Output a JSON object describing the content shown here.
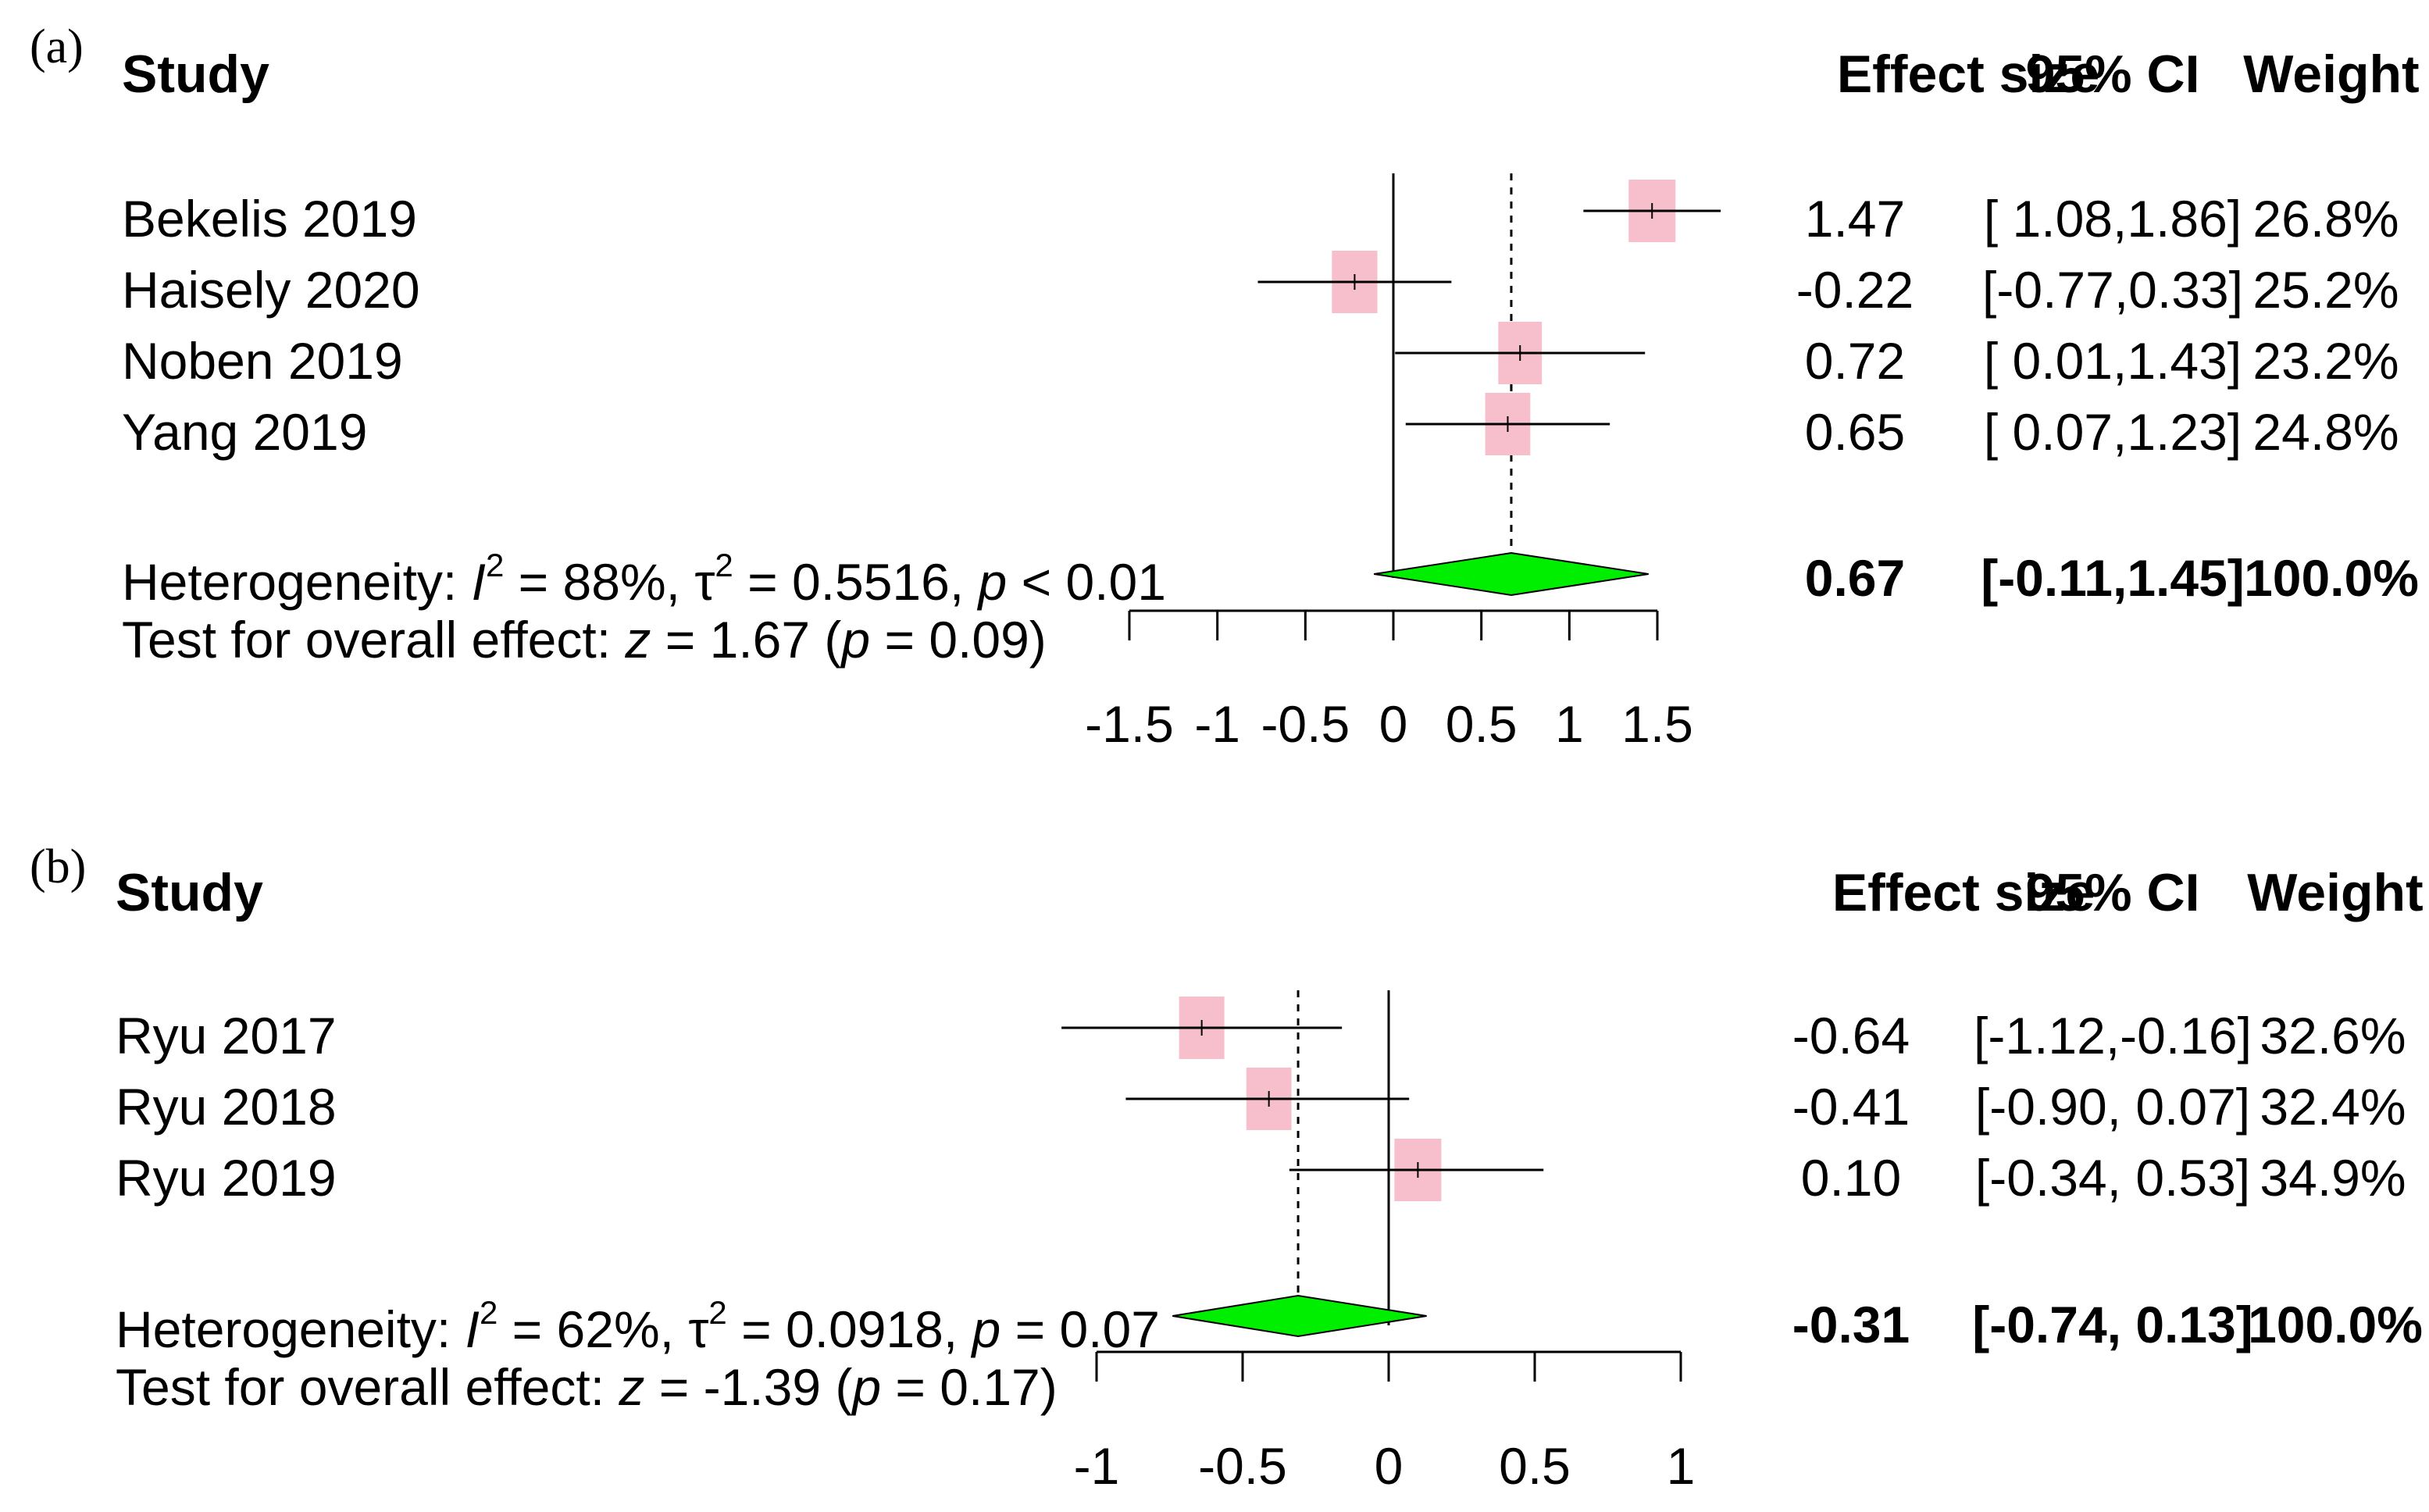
{
  "chart_data": [
    {
      "type": "forest",
      "panel": "(a)",
      "headers": {
        "study": "Study",
        "effect": "Effect size",
        "ci": "95% CI",
        "weight": "Weight"
      },
      "studies": [
        {
          "name": "Bekelis 2019",
          "effect": 1.47,
          "ci": [
            1.08,
            1.86
          ],
          "effect_label": "1.47",
          "ci_label": "[ 1.08,1.86]",
          "weight_label": "26.8%",
          "weight": 26.8
        },
        {
          "name": "Haisely 2020",
          "effect": -0.22,
          "ci": [
            -0.77,
            0.33
          ],
          "effect_label": "-0.22",
          "ci_label": "[-0.77,0.33]",
          "weight_label": "25.2%",
          "weight": 25.2
        },
        {
          "name": "Noben 2019",
          "effect": 0.72,
          "ci": [
            0.01,
            1.43
          ],
          "effect_label": "0.72",
          "ci_label": "[ 0.01,1.43]",
          "weight_label": "23.2%",
          "weight": 23.2
        },
        {
          "name": "Yang 2019",
          "effect": 0.65,
          "ci": [
            0.07,
            1.23
          ],
          "effect_label": "0.65",
          "ci_label": "[ 0.07,1.23]",
          "weight_label": "24.8%",
          "weight": 24.8
        }
      ],
      "pooled": {
        "effect": 0.67,
        "ci": [
          -0.11,
          1.45
        ],
        "effect_label": "0.67",
        "ci_label": "[-0.11,1.45]",
        "weight_label": "100.0%"
      },
      "heterogeneity": {
        "prefix": "Heterogeneity: ",
        "I2_symbol": "I",
        "sup": "2",
        "I2": " = 88%, ",
        "tau_symbol": "τ",
        "tau2": " = 0.5516, ",
        "p_symbol": "p",
        "p": " < 0.01"
      },
      "overall_test": {
        "prefix": "Test for overall effect: ",
        "z_symbol": "z",
        "z": " = 1.67 (",
        "p_symbol": "p",
        "p": " = 0.09)"
      },
      "xlim": [
        -1.5,
        1.5
      ],
      "xticks": [
        -1.5,
        -1,
        -0.5,
        0,
        0.5,
        1,
        1.5
      ],
      "xtick_labels": [
        "-1.5",
        "-1",
        "-0.5",
        "0",
        "0.5",
        "1",
        "1.5"
      ],
      "colors": {
        "box": "#f7bfcc",
        "diamond": "#00ee00",
        "line": "#000000"
      }
    },
    {
      "type": "forest",
      "panel": "(b)",
      "headers": {
        "study": "Study",
        "effect": "Effect size",
        "ci": "95% CI",
        "weight": "Weight"
      },
      "studies": [
        {
          "name": "Ryu 2017",
          "effect": -0.64,
          "ci": [
            -1.12,
            -0.16
          ],
          "effect_label": "-0.64",
          "ci_label": "[-1.12,-0.16]",
          "weight_label": "32.6%",
          "weight": 32.6
        },
        {
          "name": "Ryu 2018",
          "effect": -0.41,
          "ci": [
            -0.9,
            0.07
          ],
          "effect_label": "-0.41",
          "ci_label": "[-0.90, 0.07]",
          "weight_label": "32.4%",
          "weight": 32.4
        },
        {
          "name": "Ryu 2019",
          "effect": 0.1,
          "ci": [
            -0.34,
            0.53
          ],
          "effect_label": "0.10",
          "ci_label": "[-0.34, 0.53]",
          "weight_label": "34.9%",
          "weight": 34.9
        }
      ],
      "pooled": {
        "effect": -0.31,
        "ci": [
          -0.74,
          0.13
        ],
        "effect_label": "-0.31",
        "ci_label": "[-0.74, 0.13]",
        "weight_label": "100.0%"
      },
      "heterogeneity": {
        "prefix": "Heterogeneity: ",
        "I2_symbol": "I",
        "sup": "2",
        "I2": " = 62%, ",
        "tau_symbol": "τ",
        "tau2": " = 0.0918, ",
        "p_symbol": "p",
        "p": " = 0.07"
      },
      "overall_test": {
        "prefix": "Test for overall effect: ",
        "z_symbol": "z",
        "z": " = -1.39 (",
        "p_symbol": "p",
        "p": " = 0.17)"
      },
      "xlim": [
        -1,
        1
      ],
      "xticks": [
        -1,
        -0.5,
        0,
        0.5,
        1
      ],
      "xtick_labels": [
        "-1",
        "-0.5",
        "0",
        "0.5",
        "1"
      ],
      "colors": {
        "box": "#f7bfcc",
        "diamond": "#00ee00",
        "line": "#000000"
      }
    }
  ]
}
